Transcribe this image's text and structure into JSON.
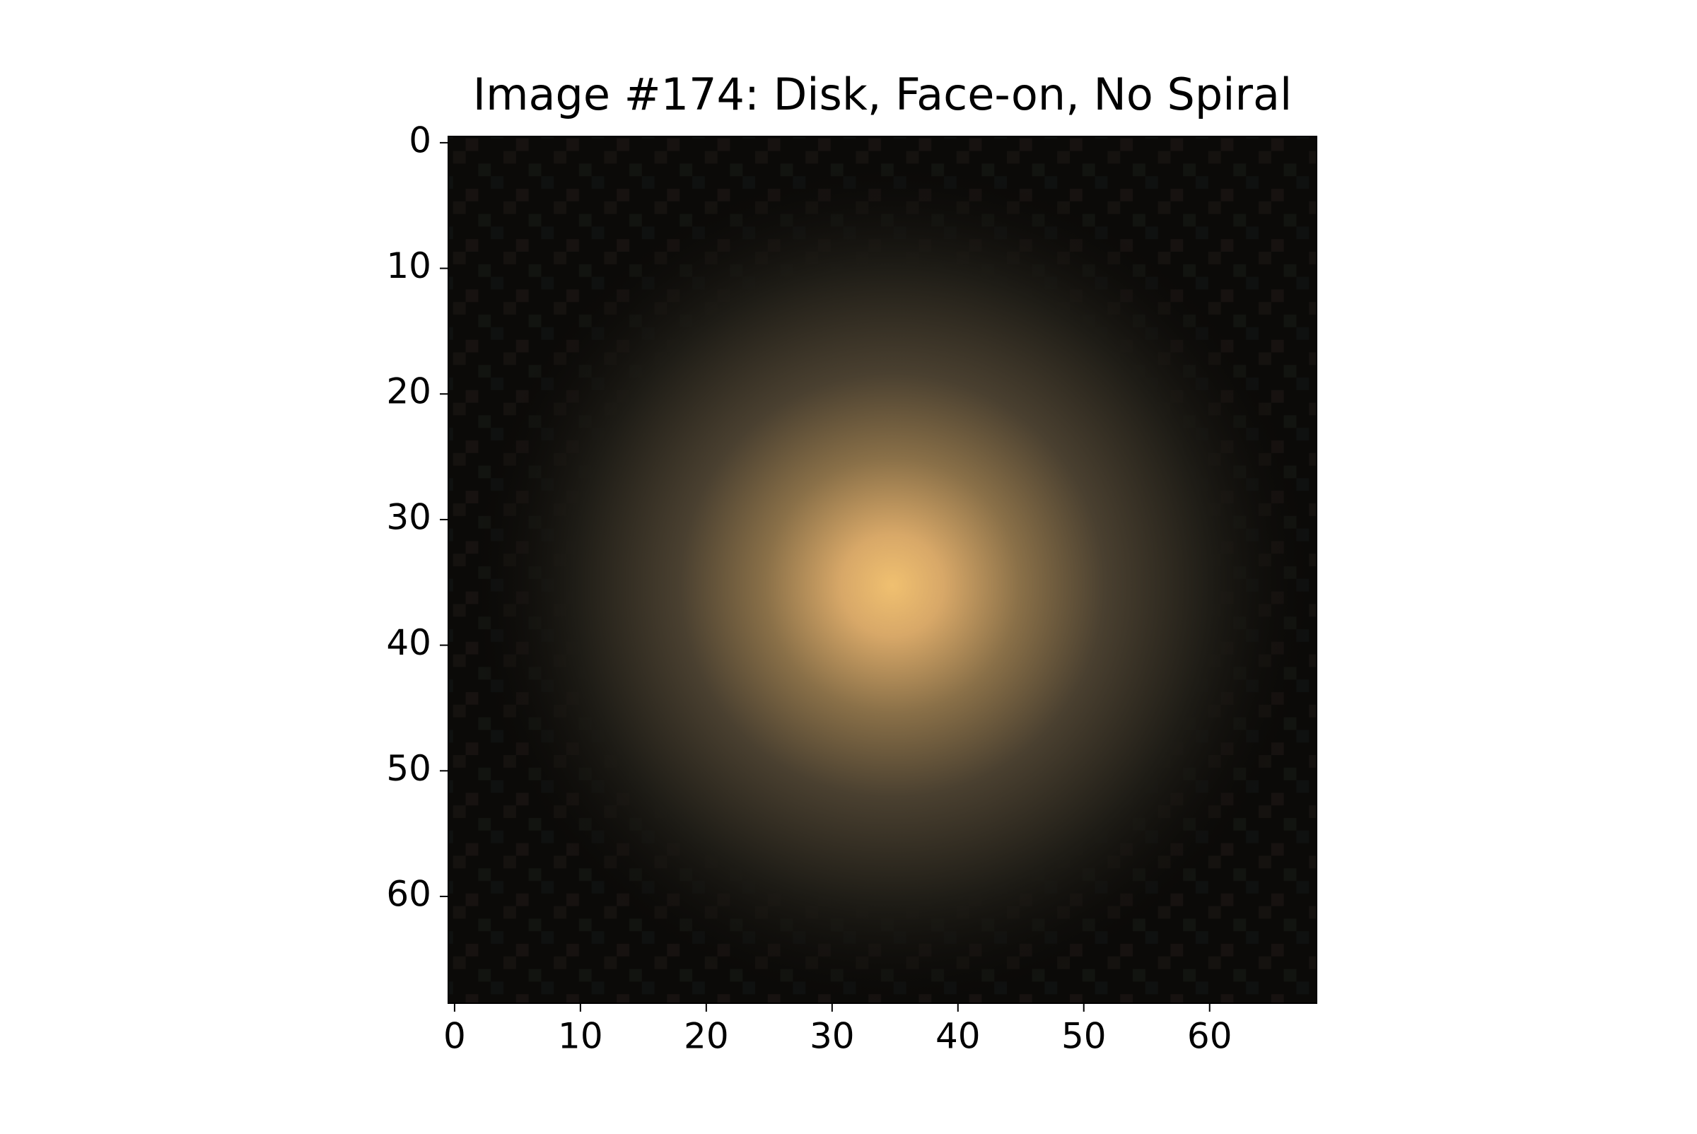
{
  "chart_data": {
    "type": "image",
    "title": "Image #174: Disk, Face-on, No Spiral",
    "xlim": [
      -0.5,
      68.5
    ],
    "ylim": [
      68.5,
      -0.5
    ],
    "xticks": [
      0,
      10,
      20,
      30,
      40,
      50,
      60
    ],
    "yticks": [
      0,
      10,
      20,
      30,
      40,
      50,
      60
    ]
  }
}
